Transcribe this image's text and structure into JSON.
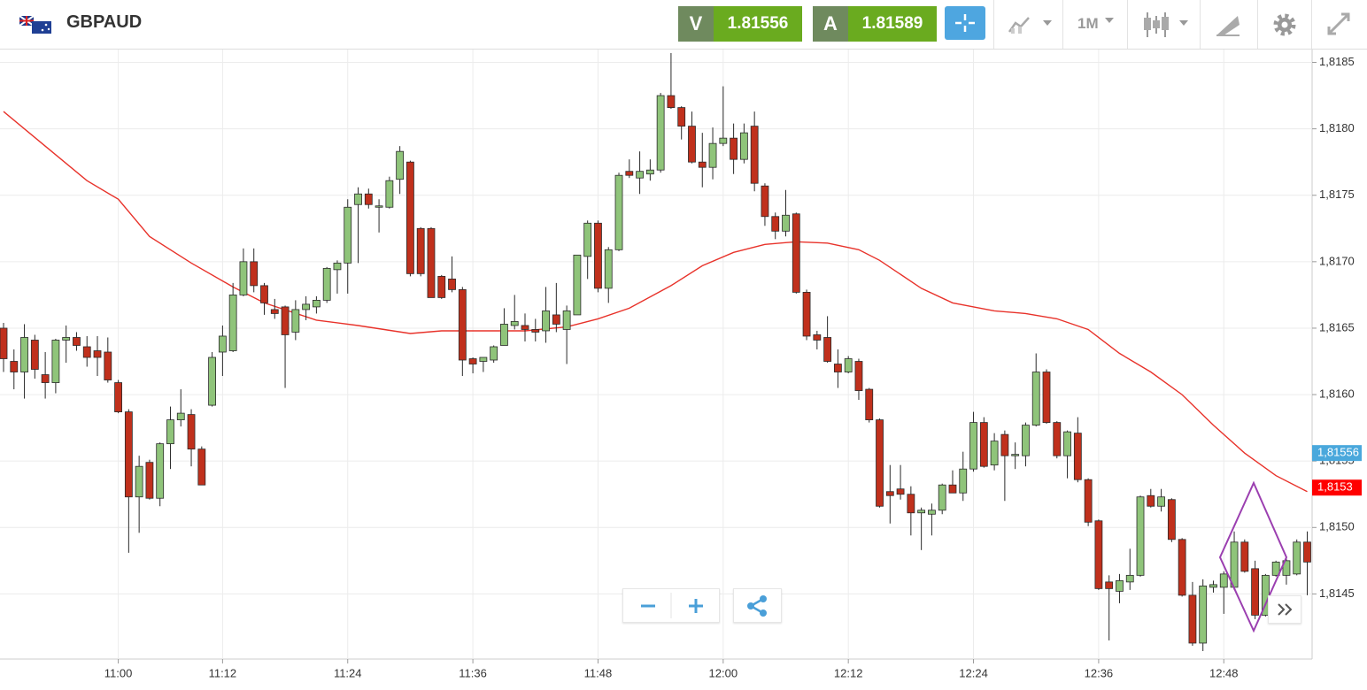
{
  "header": {
    "symbol": "GBPAUD",
    "bid_label": "V",
    "bid": 1.81556,
    "ask_label": "A",
    "ask": 1.81589,
    "timeframe": "1M"
  },
  "chart_data": {
    "type": "candlestick",
    "categories": [
      null,
      null,
      null,
      null,
      null,
      null,
      null,
      null,
      null,
      null,
      null,
      "11:00",
      null,
      null,
      null,
      null,
      null,
      null,
      null,
      null,
      null,
      "11:12",
      null,
      null,
      null,
      null,
      null,
      null,
      null,
      null,
      null,
      null,
      null,
      "11:24",
      null,
      null,
      null,
      null,
      null,
      null,
      null,
      null,
      null,
      null,
      null,
      "11:36",
      null,
      null,
      null,
      null,
      null,
      null,
      null,
      null,
      null,
      null,
      null,
      "11:48",
      null,
      null,
      null,
      null,
      null,
      null,
      null,
      null,
      null,
      null,
      null,
      "12:00",
      null,
      null,
      null,
      null,
      null,
      null,
      null,
      null,
      null,
      null,
      null,
      "12:12",
      null,
      null,
      null,
      null,
      null,
      null,
      null,
      null,
      null,
      null,
      null,
      "12:24",
      null,
      null,
      null,
      null,
      null,
      null,
      null,
      null,
      null,
      null,
      null,
      "12:36",
      null,
      null,
      null,
      null,
      null,
      null,
      null,
      null,
      null,
      null,
      null,
      "12:48",
      null,
      null,
      null,
      null,
      null,
      null,
      null,
      null
    ],
    "open": [
      1.8165,
      1.81625,
      1.81617,
      1.81641,
      1.81615,
      1.81609,
      1.81641,
      1.81643,
      1.81636,
      1.81633,
      1.81632,
      1.81609,
      1.81587,
      1.81523,
      1.81549,
      1.81522,
      1.81563,
      1.81581,
      1.81585,
      1.81559,
      1.81592,
      1.81632,
      1.81633,
      1.81675,
      1.817,
      1.81682,
      1.81664,
      1.81666,
      1.81647,
      1.81664,
      1.81666,
      1.81671,
      1.81694,
      1.81699,
      1.81743,
      1.81751,
      1.81741,
      1.81741,
      1.81762,
      1.81775,
      1.81725,
      1.81725,
      1.81689,
      1.81687,
      1.81679,
      1.81627,
      1.81625,
      1.81626,
      1.81637,
      1.81652,
      1.81652,
      1.81649,
      1.81648,
      1.8166,
      1.81649,
      1.8166,
      1.81704,
      1.81729,
      1.8168,
      1.81709,
      1.81768,
      1.81763,
      1.81766,
      1.81769,
      1.81825,
      1.81816,
      1.81802,
      1.81775,
      1.81771,
      1.81789,
      1.81793,
      1.81777,
      1.81802,
      1.81757,
      1.81734,
      1.81723,
      1.81736,
      1.81677,
      1.81645,
      1.81643,
      1.81623,
      1.81617,
      1.81625,
      1.81604,
      1.81581,
      1.81527,
      1.81529,
      1.81525,
      1.81511,
      1.8151,
      1.81513,
      1.81532,
      1.81526,
      1.81544,
      1.81579,
      1.81547,
      1.8157,
      1.81554,
      1.81554,
      1.81577,
      1.81617,
      1.81579,
      1.81554,
      1.81571,
      1.81536,
      1.81505,
      1.81459,
      1.81452,
      1.81459,
      1.81464,
      1.81524,
      1.81516,
      1.81521,
      1.81491,
      1.81449,
      1.81413,
      1.81455,
      1.81455,
      1.81455,
      1.81489,
      1.81469,
      1.81434,
      1.81464,
      1.81464,
      1.81465,
      1.81489
    ],
    "high": [
      1.81654,
      1.81634,
      1.81653,
      1.81645,
      1.81632,
      1.81642,
      1.81652,
      1.81647,
      1.81644,
      1.81644,
      1.81643,
      1.81611,
      1.81589,
      1.81554,
      1.81551,
      1.81564,
      1.81591,
      1.81604,
      1.81589,
      1.81561,
      1.81632,
      1.81652,
      1.81684,
      1.8171,
      1.8171,
      1.81684,
      1.81672,
      1.81667,
      1.81671,
      1.81674,
      1.81674,
      1.81696,
      1.81701,
      1.81747,
      1.81756,
      1.81755,
      1.81747,
      1.81764,
      1.81787,
      1.81776,
      1.81726,
      1.81726,
      1.8169,
      1.81704,
      1.81681,
      1.81628,
      1.81628,
      1.81637,
      1.81665,
      1.81675,
      1.81661,
      1.81657,
      1.81681,
      1.81684,
      1.81667,
      1.81705,
      1.81731,
      1.81731,
      1.81711,
      1.81767,
      1.81777,
      1.81783,
      1.81777,
      1.81827,
      1.81857,
      1.81817,
      1.81813,
      1.81797,
      1.81801,
      1.81832,
      1.81804,
      1.81804,
      1.81813,
      1.81759,
      1.81737,
      1.81754,
      1.81737,
      1.81679,
      1.81648,
      1.81659,
      1.81634,
      1.81629,
      1.81627,
      1.81605,
      1.81582,
      1.81547,
      1.81547,
      1.81531,
      1.81515,
      1.81518,
      1.81533,
      1.81543,
      1.81557,
      1.81587,
      1.81583,
      1.81571,
      1.81573,
      1.81564,
      1.81579,
      1.81631,
      1.81619,
      1.8158,
      1.81573,
      1.81583,
      1.81537,
      1.81506,
      1.81464,
      1.81465,
      1.81484,
      1.81524,
      1.81529,
      1.81529,
      1.81522,
      1.81492,
      1.81459,
      1.81461,
      1.8146,
      1.81467,
      1.81497,
      1.81491,
      1.81475,
      1.81465,
      1.81475,
      1.81477,
      1.81491,
      1.81497
    ],
    "low": [
      1.81617,
      1.81604,
      1.81597,
      1.81612,
      1.81597,
      1.81601,
      1.81624,
      1.81633,
      1.81621,
      1.81614,
      1.81609,
      1.81586,
      1.81481,
      1.81496,
      1.81521,
      1.81516,
      1.81544,
      1.81576,
      1.81546,
      1.81532,
      1.81591,
      1.81614,
      1.81632,
      1.81674,
      1.81677,
      1.8166,
      1.81657,
      1.81605,
      1.81641,
      1.81656,
      1.81661,
      1.81669,
      1.81676,
      1.81676,
      1.81699,
      1.8174,
      1.81722,
      1.8174,
      1.81751,
      1.81689,
      1.81689,
      1.81673,
      1.81672,
      1.81677,
      1.81614,
      1.81616,
      1.81617,
      1.81624,
      1.81637,
      1.81649,
      1.8164,
      1.8164,
      1.81639,
      1.81647,
      1.81623,
      1.8166,
      1.81687,
      1.81677,
      1.81669,
      1.81708,
      1.81763,
      1.81751,
      1.81761,
      1.81767,
      1.81815,
      1.81792,
      1.81774,
      1.81756,
      1.81762,
      1.81787,
      1.81766,
      1.81774,
      1.81753,
      1.81727,
      1.81717,
      1.81719,
      1.81676,
      1.81641,
      1.81634,
      1.81624,
      1.81605,
      1.81616,
      1.81596,
      1.81579,
      1.81515,
      1.81503,
      1.81521,
      1.81494,
      1.81483,
      1.81494,
      1.8151,
      1.81526,
      1.8152,
      1.81542,
      1.81545,
      1.81543,
      1.8152,
      1.81544,
      1.81546,
      1.81576,
      1.81578,
      1.81552,
      1.81537,
      1.81534,
      1.81501,
      1.81453,
      1.81415,
      1.81443,
      1.81453,
      1.81463,
      1.81515,
      1.81512,
      1.81489,
      1.81448,
      1.81411,
      1.81407,
      1.81451,
      1.81435,
      1.81453,
      1.81466,
      1.81431,
      1.81433,
      1.81463,
      1.81457,
      1.81464,
      1.81449
    ],
    "close": [
      1.81627,
      1.81617,
      1.81643,
      1.81619,
      1.81609,
      1.81641,
      1.81643,
      1.81637,
      1.81628,
      1.81628,
      1.81611,
      1.81587,
      1.81523,
      1.81546,
      1.81522,
      1.81563,
      1.81581,
      1.81586,
      1.81559,
      1.81532,
      1.81628,
      1.81644,
      1.81675,
      1.817,
      1.81682,
      1.81669,
      1.81661,
      1.81645,
      1.81664,
      1.81668,
      1.81671,
      1.81695,
      1.81699,
      1.81741,
      1.81751,
      1.81743,
      1.81742,
      1.81761,
      1.81783,
      1.81691,
      1.81691,
      1.81673,
      1.81673,
      1.81679,
      1.81626,
      1.81623,
      1.81628,
      1.81636,
      1.81653,
      1.81655,
      1.81649,
      1.81647,
      1.81663,
      1.81653,
      1.81663,
      1.81705,
      1.81729,
      1.8168,
      1.81709,
      1.81765,
      1.81765,
      1.81768,
      1.81769,
      1.81825,
      1.81816,
      1.81802,
      1.81775,
      1.81771,
      1.81789,
      1.81793,
      1.81777,
      1.81797,
      1.81759,
      1.81734,
      1.81723,
      1.81735,
      1.81677,
      1.81644,
      1.81641,
      1.81625,
      1.81617,
      1.81627,
      1.81603,
      1.81581,
      1.81516,
      1.81524,
      1.81525,
      1.81511,
      1.81513,
      1.81513,
      1.81532,
      1.81526,
      1.81544,
      1.81579,
      1.81546,
      1.81565,
      1.81554,
      1.81555,
      1.81577,
      1.81617,
      1.81579,
      1.81554,
      1.81572,
      1.81536,
      1.81504,
      1.81454,
      1.81454,
      1.8146,
      1.81464,
      1.81523,
      1.81516,
      1.81523,
      1.81491,
      1.81449,
      1.81413,
      1.81456,
      1.81457,
      1.81465,
      1.81489,
      1.81467,
      1.81434,
      1.81464,
      1.81474,
      1.81475,
      1.81489,
      1.81474
    ],
    "up_color": "#8fc47a",
    "down_color": "#c0301c",
    "ma": {
      "color": "#e8322a",
      "x": [
        0,
        4,
        8,
        11,
        14,
        18,
        22,
        25,
        30,
        34,
        39,
        42,
        50,
        54,
        57,
        60,
        64,
        67,
        70,
        73,
        76,
        79,
        82,
        84,
        88,
        91,
        95,
        98,
        101,
        104,
        107,
        110,
        113,
        116,
        119,
        122,
        125
      ],
      "values": [
        1.81813,
        1.81787,
        1.81761,
        1.81747,
        1.81719,
        1.81699,
        1.81681,
        1.81669,
        1.81656,
        1.81652,
        1.81646,
        1.81648,
        1.81648,
        1.81651,
        1.81657,
        1.81665,
        1.81682,
        1.81697,
        1.81707,
        1.81713,
        1.81715,
        1.81714,
        1.81709,
        1.81701,
        1.8168,
        1.81669,
        1.81663,
        1.81661,
        1.81657,
        1.81649,
        1.81631,
        1.81617,
        1.816,
        1.81577,
        1.81556,
        1.81539,
        1.81527
      ]
    },
    "price_labels": [
      {
        "value": 1.81556,
        "label": "1,81556",
        "color": "#4aa8dc"
      },
      {
        "value": 1.8153,
        "label": "1,8153",
        "color": "#ff0000"
      }
    ],
    "ylim": [
      1.81401,
      1.81859
    ],
    "yticks": [
      {
        "value": 1.8145,
        "label": "1,8145"
      },
      {
        "value": 1.815,
        "label": "1,8150"
      },
      {
        "value": 1.8155,
        "label": "1,8155"
      },
      {
        "value": 1.816,
        "label": "1,8160"
      },
      {
        "value": 1.8165,
        "label": "1,8165"
      },
      {
        "value": 1.817,
        "label": "1,8170"
      },
      {
        "value": 1.8175,
        "label": "1,8175"
      },
      {
        "value": 1.818,
        "label": "1,8180"
      },
      {
        "value": 1.8185,
        "label": "1,8185"
      }
    ],
    "grid": true,
    "y_axis_side": "right"
  }
}
